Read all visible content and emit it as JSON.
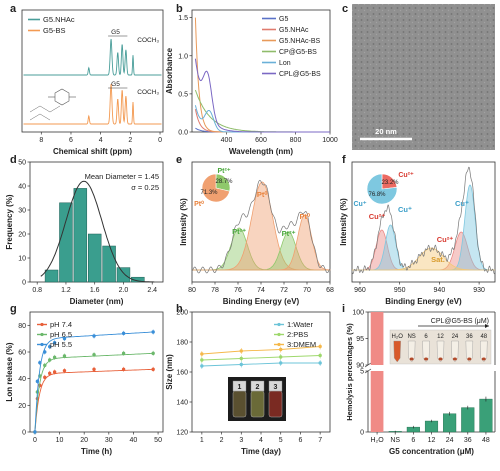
{
  "figure": {
    "panel_letters": [
      "a",
      "b",
      "c",
      "d",
      "e",
      "f",
      "g",
      "h",
      "i"
    ]
  },
  "chart_data": [
    {
      "panel": "a",
      "type": "line",
      "xlabel": "Chemical shift (ppm)",
      "ylabel": "",
      "xticks": [
        8,
        6,
        4,
        2,
        0
      ],
      "xlim": [
        9.3,
        -0.2
      ],
      "series": [
        {
          "name": "G5.NHAc",
          "color": "#4a9e9a"
        },
        {
          "name": "G5-BS",
          "color": "#f39a52"
        }
      ],
      "annotations": [
        "G5",
        "COCH₃",
        "G5",
        "COCH₃"
      ]
    },
    {
      "panel": "b",
      "type": "line",
      "xlabel": "Wavelength (nm)",
      "ylabel": "Absorbance",
      "xticks": [
        400,
        600,
        800,
        1000
      ],
      "yticks": [
        0.0,
        0.5,
        1.0,
        1.5
      ],
      "xlim": [
        200,
        1000
      ],
      "ylim": [
        0,
        1.6
      ],
      "series": [
        {
          "name": "G5",
          "color": "#5a72c8"
        },
        {
          "name": "G5.NHAc",
          "color": "#e07b6e"
        },
        {
          "name": "G5.NHAc-BS",
          "color": "#e89a5a"
        },
        {
          "name": "CP@G5-BS",
          "color": "#8fbc6b"
        },
        {
          "name": "Lon",
          "color": "#6ab0d8"
        },
        {
          "name": "CPL@G5-BS",
          "color": "#7b68c4"
        }
      ]
    },
    {
      "panel": "c",
      "type": "table",
      "scale_bar": "20 nm"
    },
    {
      "panel": "d",
      "type": "bar",
      "xlabel": "Diameter (nm)",
      "ylabel": "Frequency (%)",
      "xticks": [
        0.8,
        1.2,
        1.6,
        2.0,
        2.4
      ],
      "yticks": [
        0,
        10,
        20,
        30,
        40,
        50
      ],
      "xlim": [
        0.7,
        2.55
      ],
      "ylim": [
        0,
        50
      ],
      "bin_width": 0.2,
      "x": [
        1.0,
        1.2,
        1.4,
        1.6,
        1.8,
        2.0,
        2.2
      ],
      "values": [
        5,
        33,
        39,
        20,
        15,
        6,
        2
      ],
      "annotations": [
        "Mean Diameter = 1.45",
        "σ = 0.25"
      ],
      "colors": {
        "bar": "#3a9e8e",
        "fit": "#333333"
      }
    },
    {
      "panel": "e",
      "type": "line",
      "xlabel": "Binding Energy (eV)",
      "ylabel": "Intensity (%)",
      "xticks": [
        80,
        78,
        76,
        74,
        72,
        70,
        68
      ],
      "xlim": [
        80,
        68
      ],
      "peaks": [
        {
          "label": "Pt²⁺",
          "color": "#8fc86b",
          "position": 75.9
        },
        {
          "label": "Pt⁰",
          "color": "#f0a070",
          "position": 73.9
        },
        {
          "label": "Pt²⁺",
          "color": "#8fc86b",
          "position": 71.6
        },
        {
          "label": "Pt⁰",
          "color": "#f0a070",
          "position": 70.2
        }
      ],
      "pie": {
        "values": [
          28.7,
          71.3
        ],
        "labels": [
          "Pt²⁺",
          "Pt⁰"
        ],
        "value_labels": [
          "28.7%",
          "71.3%"
        ],
        "colors": [
          "#8fc86b",
          "#f0a070"
        ]
      }
    },
    {
      "panel": "f",
      "type": "line",
      "xlabel": "Binding Energy (eV)",
      "ylabel": "Intensity (%)",
      "xticks": [
        960,
        950,
        940,
        930
      ],
      "xlim": [
        962,
        926
      ],
      "peaks": [
        {
          "label": "Cu²⁺",
          "color": "#ec8a86",
          "position": 954.5
        },
        {
          "label": "Cu⁺",
          "color": "#7ec8e0",
          "position": 952.3
        },
        {
          "label": "Cu²⁺",
          "color": "#ec8a86",
          "position": 934.5
        },
        {
          "label": "Cu⁺",
          "color": "#7ec8e0",
          "position": 932.3
        },
        {
          "label": "Sat.",
          "color": "#f5c878",
          "position": 942
        }
      ],
      "annotations": [
        "Cu²⁺",
        "Cu⁺",
        "Cu²⁺",
        "Cu⁺",
        "Sat."
      ],
      "pie": {
        "values": [
          23.2,
          76.8
        ],
        "labels": [
          "Cu²⁺",
          "Cu⁺"
        ],
        "value_labels": [
          "23.2%",
          "76.8%"
        ],
        "colors": [
          "#ec6a62",
          "#7ec8e0"
        ]
      }
    },
    {
      "panel": "g",
      "type": "line",
      "xlabel": "Time (h)",
      "ylabel": "Lon release (%)",
      "xticks": [
        0,
        10,
        20,
        30,
        40,
        50
      ],
      "yticks": [
        0,
        20,
        40,
        60,
        80
      ],
      "xlim": [
        -2,
        52
      ],
      "ylim": [
        0,
        90
      ],
      "x": [
        0,
        1,
        2,
        4,
        6,
        8,
        12,
        24,
        36,
        48
      ],
      "series": [
        {
          "name": "pH 7.4",
          "color": "#e8603a",
          "values": [
            0,
            25,
            35,
            41,
            44,
            45,
            46,
            47,
            47,
            47
          ]
        },
        {
          "name": "pH 6.5",
          "color": "#6cb86c",
          "values": [
            0,
            30,
            42,
            50,
            54,
            56,
            57,
            58,
            59,
            59
          ]
        },
        {
          "name": "pH 5.5",
          "color": "#3a8fd8",
          "values": [
            0,
            38,
            52,
            60,
            64,
            67,
            70,
            72,
            74,
            75
          ]
        }
      ]
    },
    {
      "panel": "h",
      "type": "line",
      "xlabel": "Time (day)",
      "ylabel": "Size (nm)",
      "xticks": [
        1,
        2,
        3,
        4,
        5,
        6,
        7
      ],
      "yticks": [
        120,
        140,
        160,
        180,
        200
      ],
      "xlim": [
        0.5,
        7.5
      ],
      "ylim": [
        120,
        200
      ],
      "x": [
        1,
        3,
        5,
        7
      ],
      "series": [
        {
          "name": "1:Water",
          "color": "#6cc4d8",
          "values": [
            164,
            165,
            166,
            166
          ]
        },
        {
          "name": "2:PBS",
          "color": "#9ed86c",
          "values": [
            168,
            169,
            170,
            171
          ]
        },
        {
          "name": "3:DMEM",
          "color": "#f5b84a",
          "values": [
            172,
            174,
            175,
            177
          ]
        }
      ],
      "inset_labels": [
        "1",
        "2",
        "3"
      ]
    },
    {
      "panel": "i",
      "type": "bar",
      "xlabel": "G5 concentration (μM)",
      "ylabel": "Hemolysis percentages (%)",
      "categories": [
        "H₂O",
        "NS",
        "6",
        "12",
        "24",
        "36",
        "48"
      ],
      "values": [
        100,
        0.05,
        0.4,
        0.9,
        1.5,
        2.0,
        2.7
      ],
      "errors": [
        0,
        0.05,
        0.1,
        0.1,
        0.15,
        0.15,
        0.2
      ],
      "y_axis_break": [
        5,
        90
      ],
      "yticks": [
        0,
        5,
        90,
        95,
        100
      ],
      "colors": {
        "control": "#f08a86",
        "sample": "#3aa078"
      },
      "inset_title": "CPL@G5-BS (μM)",
      "inset_labels": [
        "H₂O",
        "NS",
        "6",
        "12",
        "24",
        "36",
        "48"
      ]
    }
  ]
}
